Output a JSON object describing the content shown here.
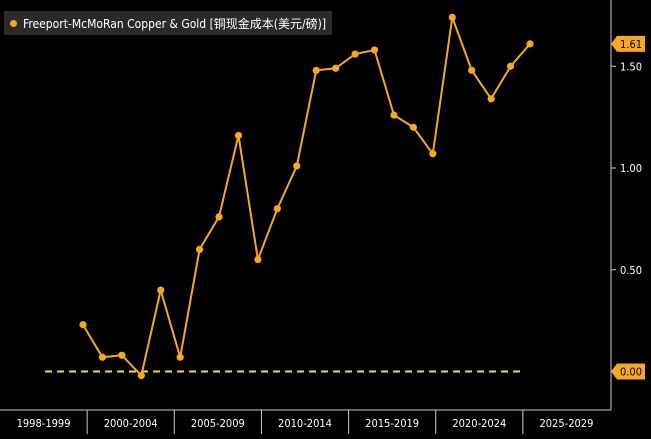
{
  "legend": {
    "label": "Freeport-McMoRan Copper & Gold [铜现金成本(美元/磅)]"
  },
  "colors": {
    "series": "#f7a823",
    "zero_line": "#f0e040",
    "axis": "#cccccc",
    "bg": "#000000",
    "label_bg": "#f7a823"
  },
  "chart_data": {
    "type": "line",
    "x": [
      2000,
      2001,
      2002,
      2003,
      2004,
      2005,
      2006,
      2007,
      2008,
      2009,
      2010,
      2011,
      2012,
      2013,
      2014,
      2015,
      2016,
      2017,
      2018,
      2019,
      2020,
      2021,
      2022,
      2023
    ],
    "series": [
      {
        "name": "Freeport-McMoRan Copper & Gold [铜现金成本(美元/磅)]",
        "values": [
          0.23,
          0.07,
          0.08,
          -0.02,
          0.4,
          0.07,
          0.6,
          0.76,
          1.16,
          0.55,
          0.8,
          1.01,
          1.48,
          1.49,
          1.56,
          1.58,
          1.26,
          1.2,
          1.07,
          1.74,
          1.48,
          1.34,
          1.5,
          1.61
        ]
      }
    ],
    "reference_line": {
      "value": 0.0,
      "style": "dashed"
    },
    "y_ticks": [
      "1.50",
      "1.00",
      "0.50"
    ],
    "ylim": [
      -0.18,
      1.84
    ],
    "x_labels": [
      "1998-1999",
      "2000-2004",
      "2005-2009",
      "2010-2014",
      "2015-2019",
      "2020-2024",
      "2025-2029"
    ],
    "last_value_label": "1.61",
    "zero_value_label": "0.00",
    "grid": false,
    "legend_position": "top-left"
  }
}
